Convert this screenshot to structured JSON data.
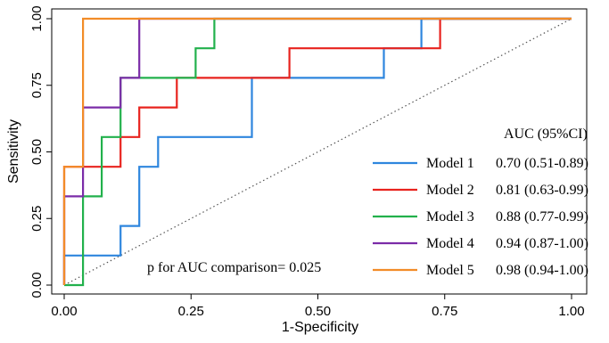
{
  "chart_data": {
    "type": "line",
    "xlabel": "1-Specificity",
    "ylabel": "Sensitivity",
    "xlim": [
      0,
      1
    ],
    "ylim": [
      0,
      1
    ],
    "x_ticks": [
      "0.00",
      "0.25",
      "0.50",
      "0.75",
      "1.00"
    ],
    "y_ticks": [
      "0.00",
      "0.25",
      "0.50",
      "0.75",
      "1.00"
    ],
    "reference_line": "diagonal dotted",
    "legend_title": "AUC (95%CI)",
    "legend_position": "bottom-right",
    "annotation": "p for AUC comparison= 0.025",
    "series": [
      {
        "name": "Model 1",
        "auc": "0.70 (0.51-0.89)",
        "color": "#2E86DE",
        "x": [
          0,
          0,
          0.037,
          0.037,
          0.111,
          0.111,
          0.148,
          0.148,
          0.185,
          0.185,
          0.37,
          0.37,
          0.63,
          0.63,
          0.704,
          0.704,
          1
        ],
        "y": [
          0,
          0.111,
          0.111,
          0.111,
          0.111,
          0.222,
          0.222,
          0.444,
          0.444,
          0.556,
          0.556,
          0.778,
          0.778,
          0.889,
          0.889,
          1,
          1
        ]
      },
      {
        "name": "Model 2",
        "auc": "0.81 (0.63-0.99)",
        "color": "#E8231E",
        "x": [
          0,
          0,
          0.111,
          0.111,
          0.148,
          0.148,
          0.222,
          0.222,
          0.444,
          0.444,
          0.741,
          0.741,
          1
        ],
        "y": [
          0,
          0.444,
          0.444,
          0.556,
          0.556,
          0.667,
          0.667,
          0.778,
          0.778,
          0.889,
          0.889,
          1,
          1
        ]
      },
      {
        "name": "Model 3",
        "auc": "0.88 (0.77-0.99)",
        "color": "#22B14C",
        "x": [
          0,
          0.037,
          0.037,
          0.074,
          0.074,
          0.111,
          0.111,
          0.259,
          0.259,
          0.296,
          0.296,
          1
        ],
        "y": [
          0,
          0,
          0.333,
          0.333,
          0.556,
          0.556,
          0.778,
          0.778,
          0.889,
          0.889,
          1,
          1
        ]
      },
      {
        "name": "Model 4",
        "auc": "0.94 (0.87-1.00)",
        "color": "#7B2CA8",
        "x": [
          0,
          0,
          0.037,
          0.037,
          0.111,
          0.111,
          0.148,
          0.148,
          1
        ],
        "y": [
          0,
          0.333,
          0.333,
          0.667,
          0.667,
          0.778,
          0.778,
          1,
          1
        ]
      },
      {
        "name": "Model 5",
        "auc": "0.98 (0.94-1.00)",
        "color": "#F28C28",
        "x": [
          0,
          0,
          0.037,
          0.037,
          1
        ],
        "y": [
          0,
          0.444,
          0.444,
          1,
          1
        ]
      }
    ]
  }
}
